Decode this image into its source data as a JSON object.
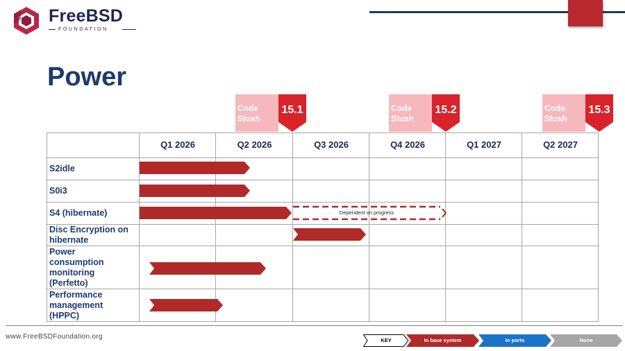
{
  "logo": {
    "brand": "FreeBSD",
    "sub": "FOUNDATION"
  },
  "slide_title": "Power",
  "releases": [
    {
      "slush": "Code\nSlush",
      "version": "15.1"
    },
    {
      "slush": "Code\nSlush",
      "version": "15.2"
    },
    {
      "slush": "Code\nSlush",
      "version": "15.3"
    }
  ],
  "quarters": [
    "Q1 2026",
    "Q2 2026",
    "Q3 2026",
    "Q4 2026",
    "Q1 2027",
    "Q2 2027"
  ],
  "rows": [
    {
      "label": "S2idle",
      "status": "In base system",
      "start": "Q1 2026",
      "end": "Q2 2026"
    },
    {
      "label": "S0i3",
      "status": "In base system",
      "start": "Q1 2026",
      "end": "Q2 2026"
    },
    {
      "label": "S4 (hibernate)",
      "status": "In base system",
      "start": "Q1 2026",
      "end": "Q2 2026",
      "dependent": {
        "note": "Dependent on progress",
        "start": "Q3 2026",
        "end": "Q4 2026"
      }
    },
    {
      "label": "Disc Encryption on hibernate",
      "status": "In base system",
      "start": "Q3 2026",
      "end": "Q3 2026"
    },
    {
      "label": "Power consumption monitoring (Perfetto)",
      "status": "In base system",
      "start": "Q1 2026",
      "end": "Q2 2026"
    },
    {
      "label": "Performance management (HPPC)",
      "status": "In base system",
      "start": "Q1 2026",
      "end": "Q1 2026"
    }
  ],
  "footer": {
    "url": "www.FreeBSDFoundation.org",
    "key": [
      {
        "label": "KEY",
        "color": "#ffffff",
        "text_color": "#000000"
      },
      {
        "label": "In base system",
        "color": "#b02a2a",
        "text_color": "#ffffff"
      },
      {
        "label": "In ports",
        "color": "#1a73c7",
        "text_color": "#ffffff"
      },
      {
        "label": "None",
        "color": "#a6a6a6",
        "text_color": "#ffffff"
      }
    ]
  },
  "colors": {
    "bar": "#b02a2a",
    "brand_navy": "#1d3a6e",
    "slush": "#f6b7bd",
    "release": "#d8232a"
  }
}
